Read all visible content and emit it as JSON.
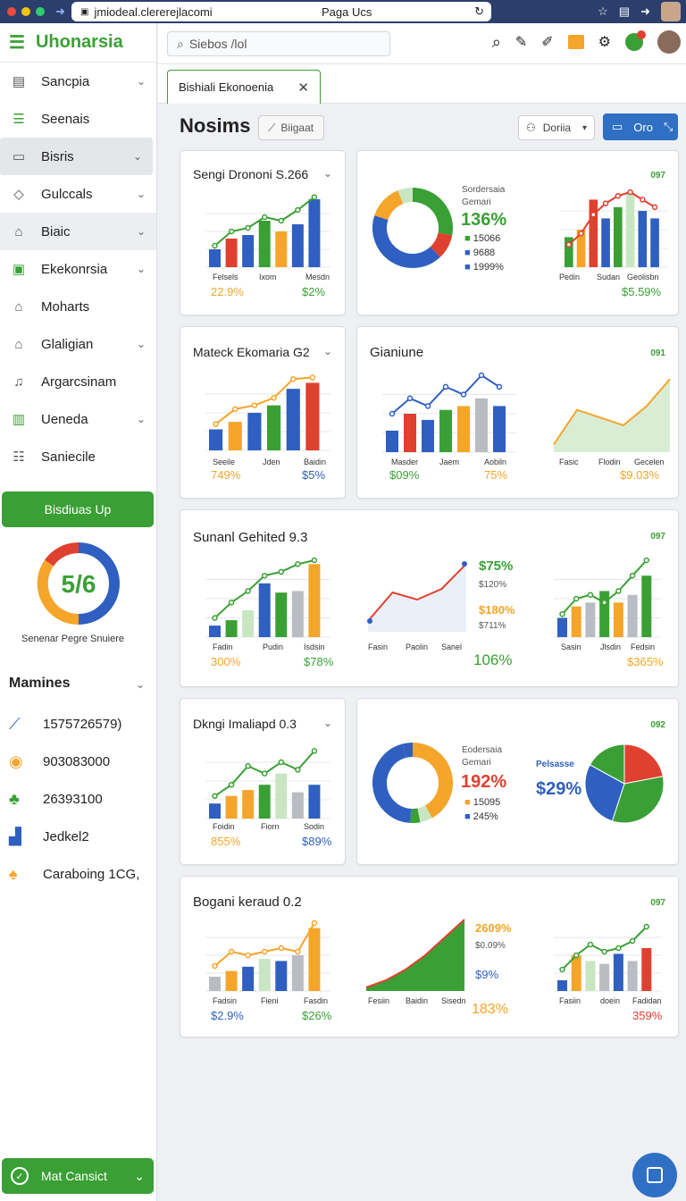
{
  "browser": {
    "url": "jmiodeal.clererejlacomi",
    "title": "Paga Ucs"
  },
  "app": {
    "brand": "Uhonarsia",
    "search_placeholder": "Siebos /lol",
    "tab": "Bishiali Ekonoenia",
    "heading": "Nosims",
    "heading_btn": "Biigaat",
    "filter_label": "Doriia",
    "view_label": "Oro"
  },
  "sidebar": {
    "items": [
      {
        "label": "Sancpia",
        "icon": "document-icon"
      },
      {
        "label": "Seenais",
        "icon": "list-icon"
      },
      {
        "label": "Bisris",
        "icon": "card-icon"
      },
      {
        "label": "Gulccals",
        "icon": "tag-icon"
      },
      {
        "label": "Biaic",
        "icon": "home-icon"
      },
      {
        "label": "Ekekonrsia",
        "icon": "briefcase-icon"
      },
      {
        "label": "Moharts",
        "icon": "home-icon"
      },
      {
        "label": "Glaligian",
        "icon": "home-icon"
      },
      {
        "label": "Argarcsinam",
        "icon": "bell-icon"
      },
      {
        "label": "Ueneda",
        "icon": "clipboard-icon"
      },
      {
        "label": "Saniecile",
        "icon": "sliders-icon"
      }
    ],
    "cta": "Bisdiuas Up",
    "gauge_value": "5/6",
    "gauge_caption": "Senenar Pegre Snuiere",
    "section": "Mamines",
    "stats": [
      "1575726579)",
      "903083000",
      "26393100",
      "Jedkel2",
      "Caraboing 1CG,"
    ],
    "bottom_btn": "Mat Cansict"
  },
  "cards": {
    "c1": {
      "title": "Sengi Drononi S.266",
      "x": [
        "Felsels",
        "Ixom",
        "Mesdn"
      ],
      "p1": "22.9%",
      "p2": "$2%"
    },
    "c2": {
      "tag": "097",
      "legend_title": "Sordersaia",
      "legend_sub": "Gemari",
      "big": "136%",
      "rows": [
        "15066",
        "9688",
        "1999%"
      ],
      "x": [
        "Pedin",
        "Sudan",
        "Geolisbn"
      ],
      "foot": "$5.59%"
    },
    "c3": {
      "title": "Mateck Ekomaria G2",
      "x": [
        "Seeile",
        "Jden",
        "Baidin"
      ],
      "p1": "749%",
      "p2": "$5%"
    },
    "c4": {
      "title": "Gianiune",
      "tag": "091",
      "x": [
        "Masder",
        "Jaem",
        "Aobiln"
      ],
      "p1": "$09%",
      "p2": "75%",
      "x2": [
        "Fasic",
        "Flodin",
        "Gecelen"
      ],
      "foot": "$9.03%"
    },
    "c5": {
      "title": "Sunanl Gehited 9.3",
      "tag": "097",
      "x": [
        "Fadin",
        "Pudin",
        "Isdsin"
      ],
      "p1": "300%",
      "p2": "$78%",
      "v1": "$75%",
      "v2": "$120%",
      "v3": "$180%",
      "v4": "$711%",
      "v5": "106%",
      "x2": [
        "Fasin",
        "Paolin",
        "Sanel"
      ],
      "x3": [
        "Sasin",
        "Jlsdin",
        "Fedsin"
      ],
      "foot": "$365%"
    },
    "c6": {
      "title": "Dkngi Imaliapd 0.3",
      "x": [
        "Foidin",
        "Fiorn",
        "Sodin"
      ],
      "p1": "855%",
      "p2": "$89%"
    },
    "c7": {
      "tag": "092",
      "legend_title": "Eodersaia",
      "legend_sub": "Gemari",
      "big": "192%",
      "rows": [
        "15095",
        "245%"
      ],
      "pie_label": "Pelsasse",
      "pie_big": "$29%"
    },
    "c8": {
      "title": "Bogani keraud 0.2",
      "tag": "097",
      "x": [
        "Fadsin",
        "Fieni",
        "Fasdin"
      ],
      "p1": "$2.9%",
      "p2": "$26%",
      "v1": "2609%",
      "v2": "$0.09%",
      "v3": "$9%",
      "v4": "183%",
      "x2": [
        "Fesiin",
        "Baidin",
        "Sisedn"
      ],
      "x3": [
        "Fasiin",
        "doein",
        "Fadidan"
      ],
      "foot": "359%"
    }
  },
  "colors": {
    "green": "#3aa035",
    "blue": "#2f5fc0",
    "orange": "#f4a52a",
    "red": "#e0402f",
    "gray": "#b9bcc2",
    "lightgreen": "#c9e6c3"
  }
}
